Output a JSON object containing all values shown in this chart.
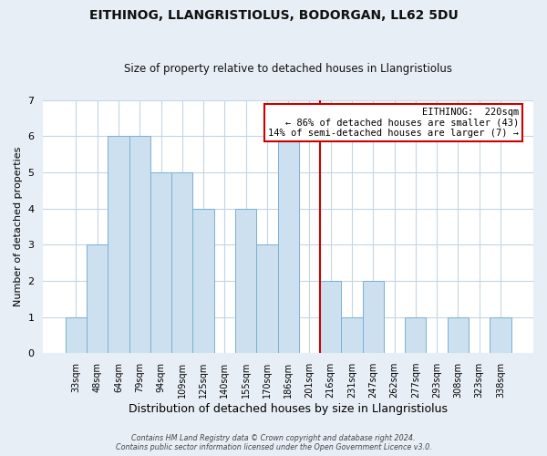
{
  "title": "EITHINOG, LLANGRISTIOLUS, BODORGAN, LL62 5DU",
  "subtitle": "Size of property relative to detached houses in Llangristiolus",
  "xlabel": "Distribution of detached houses by size in Llangristiolus",
  "ylabel": "Number of detached properties",
  "bin_labels": [
    "33sqm",
    "48sqm",
    "64sqm",
    "79sqm",
    "94sqm",
    "109sqm",
    "125sqm",
    "140sqm",
    "155sqm",
    "170sqm",
    "186sqm",
    "201sqm",
    "216sqm",
    "231sqm",
    "247sqm",
    "262sqm",
    "277sqm",
    "293sqm",
    "308sqm",
    "323sqm",
    "338sqm"
  ],
  "bar_heights": [
    1,
    3,
    6,
    6,
    5,
    5,
    4,
    0,
    4,
    3,
    6,
    0,
    2,
    1,
    2,
    0,
    1,
    0,
    1,
    0,
    1
  ],
  "bar_color": "#cce0f0",
  "bar_edge_color": "#7ab0d4",
  "ylim": [
    0,
    7
  ],
  "yticks": [
    0,
    1,
    2,
    3,
    4,
    5,
    6,
    7
  ],
  "vline_color": "#cc0000",
  "annotation_title": "EITHINOG:  220sqm",
  "annotation_line1": "← 86% of detached houses are smaller (43)",
  "annotation_line2": "14% of semi-detached houses are larger (7) →",
  "annotation_box_color": "#ffffff",
  "annotation_box_edge": "#cc0000",
  "footer_line1": "Contains HM Land Registry data © Crown copyright and database right 2024.",
  "footer_line2": "Contains public sector information licensed under the Open Government Licence v3.0.",
  "background_color": "#e8eef5",
  "plot_bg_color": "#ffffff",
  "grid_color": "#c5d5e5"
}
